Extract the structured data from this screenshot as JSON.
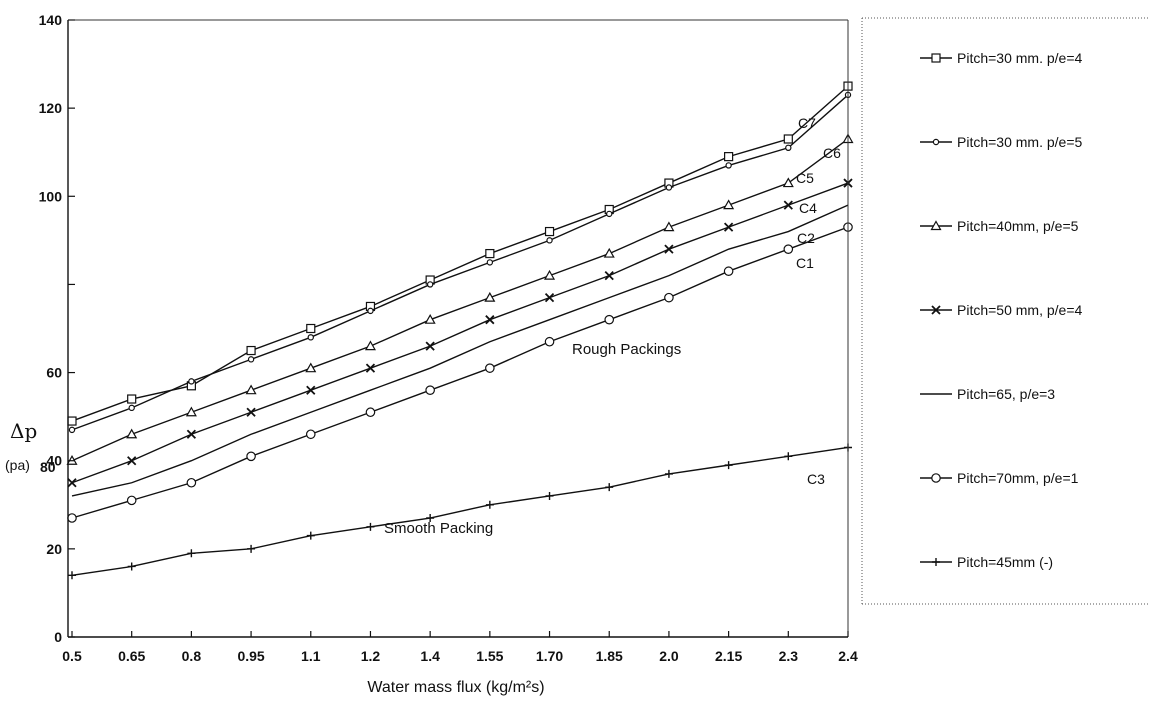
{
  "chart_data": {
    "type": "line",
    "xlabel": "Water mass flux (kg/m²s)",
    "ylabel": "Δp",
    "ylabel_unit": "(pa)",
    "x_tick_labels": [
      "0.5",
      "0.65",
      "0.8",
      "0.95",
      "1.1",
      "1.2",
      "1.4",
      "1.55",
      "1.70",
      "1.85",
      "2.0",
      "2.15",
      "2.3",
      "2.4"
    ],
    "ylim": [
      0,
      140
    ],
    "yticks": [
      0,
      20,
      40,
      60,
      80,
      100,
      120,
      140
    ],
    "ytick_labels": [
      "0",
      "20",
      "40",
      "60",
      "",
      "100",
      "120",
      "140"
    ],
    "ylabel_inline_tick": "80",
    "grid": false,
    "legend_position": "right",
    "annotations": [
      "Rough Packings",
      "Smooth Packing"
    ],
    "series": [
      {
        "name": "Pitch=30 mm. p/e=4",
        "curve_label": "C7",
        "marker": "square",
        "values": [
          49,
          54,
          57,
          65,
          70,
          75,
          81,
          87,
          92,
          97,
          103,
          109,
          113,
          125
        ]
      },
      {
        "name": "Pitch=30 mm. p/e=5",
        "curve_label": "C6",
        "marker": "small-circle",
        "values": [
          47,
          52,
          58,
          63,
          68,
          74,
          80,
          85,
          90,
          96,
          102,
          107,
          111,
          123
        ]
      },
      {
        "name": "Pitch=40mm, p/e=5",
        "curve_label": "C5",
        "marker": "triangle",
        "values": [
          40,
          46,
          51,
          56,
          61,
          66,
          72,
          77,
          82,
          87,
          93,
          98,
          103,
          113
        ]
      },
      {
        "name": "Pitch=50 mm, p/e=4",
        "curve_label": "C4",
        "marker": "x",
        "values": [
          35,
          40,
          46,
          51,
          56,
          61,
          66,
          72,
          77,
          82,
          88,
          93,
          98,
          103
        ]
      },
      {
        "name": "Pitch=65, p/e=3",
        "curve_label": "C2",
        "marker": "none",
        "values": [
          32,
          35,
          40,
          46,
          51,
          56,
          61,
          67,
          72,
          77,
          82,
          88,
          92,
          98
        ]
      },
      {
        "name": "Pitch=70mm, p/e=1",
        "curve_label": "C1",
        "marker": "circle",
        "values": [
          27,
          31,
          35,
          41,
          46,
          51,
          56,
          61,
          67,
          72,
          77,
          83,
          88,
          93
        ]
      },
      {
        "name": "Pitch=45mm (-)",
        "curve_label": "C3",
        "marker": "plus",
        "values": [
          14,
          16,
          19,
          20,
          23,
          25,
          27,
          30,
          32,
          34,
          37,
          39,
          41,
          43
        ]
      }
    ]
  }
}
